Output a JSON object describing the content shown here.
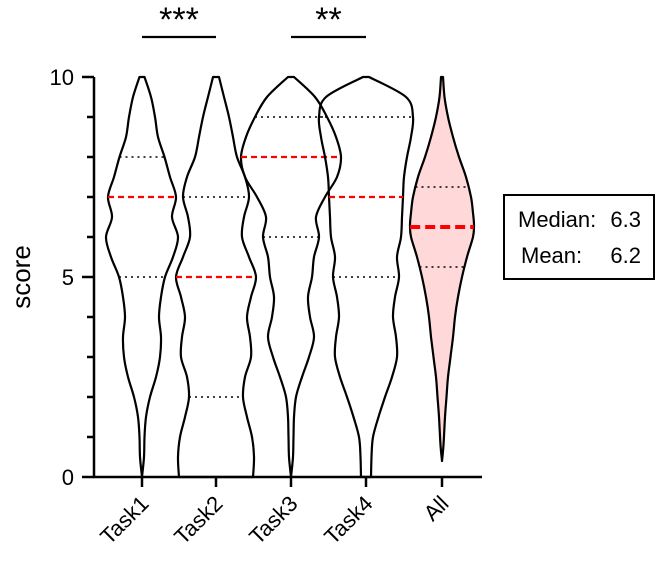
{
  "chart_data": {
    "type": "violin",
    "ylabel": "score",
    "ylim": [
      0,
      10
    ],
    "yticks": [
      0,
      5,
      10
    ],
    "categories": [
      "Task1",
      "Task2",
      "Task3",
      "Task4",
      "All"
    ],
    "violins": [
      {
        "name": "Task1",
        "fill": "none",
        "profile": [
          [
            0.0,
            0.0
          ],
          [
            0.5,
            0.04
          ],
          [
            1.0,
            0.05
          ],
          [
            1.5,
            0.08
          ],
          [
            2.0,
            0.16
          ],
          [
            2.5,
            0.28
          ],
          [
            3.0,
            0.36
          ],
          [
            3.5,
            0.38
          ],
          [
            4.0,
            0.34
          ],
          [
            4.5,
            0.38
          ],
          [
            5.0,
            0.46
          ],
          [
            5.5,
            0.62
          ],
          [
            6.0,
            0.72
          ],
          [
            6.5,
            0.6
          ],
          [
            7.0,
            0.68
          ],
          [
            7.5,
            0.56
          ],
          [
            8.0,
            0.45
          ],
          [
            8.5,
            0.32
          ],
          [
            9.0,
            0.26
          ],
          [
            9.5,
            0.18
          ],
          [
            10.0,
            0.05
          ]
        ],
        "quartiles": [
          5,
          8
        ],
        "median": 7
      },
      {
        "name": "Task2",
        "fill": "none",
        "profile": [
          [
            0.0,
            0.74
          ],
          [
            0.5,
            0.76
          ],
          [
            1.0,
            0.72
          ],
          [
            1.5,
            0.62
          ],
          [
            2.0,
            0.54
          ],
          [
            2.5,
            0.58
          ],
          [
            3.0,
            0.7
          ],
          [
            3.5,
            0.68
          ],
          [
            4.0,
            0.62
          ],
          [
            4.5,
            0.7
          ],
          [
            5.0,
            0.8
          ],
          [
            5.5,
            0.66
          ],
          [
            6.0,
            0.52
          ],
          [
            6.5,
            0.56
          ],
          [
            7.0,
            0.66
          ],
          [
            7.5,
            0.58
          ],
          [
            8.0,
            0.42
          ],
          [
            8.5,
            0.34
          ],
          [
            9.0,
            0.26
          ],
          [
            9.5,
            0.16
          ],
          [
            10.0,
            0.06
          ]
        ],
        "quartiles": [
          2,
          7
        ],
        "median": 5
      },
      {
        "name": "Task3",
        "fill": "none",
        "profile": [
          [
            0.0,
            0.0
          ],
          [
            0.5,
            0.04
          ],
          [
            1.0,
            0.05
          ],
          [
            1.5,
            0.06
          ],
          [
            2.0,
            0.1
          ],
          [
            2.5,
            0.22
          ],
          [
            3.0,
            0.36
          ],
          [
            3.5,
            0.46
          ],
          [
            4.0,
            0.38
          ],
          [
            4.5,
            0.34
          ],
          [
            5.0,
            0.42
          ],
          [
            5.5,
            0.46
          ],
          [
            6.0,
            0.56
          ],
          [
            6.5,
            0.5
          ],
          [
            7.0,
            0.68
          ],
          [
            7.5,
            0.92
          ],
          [
            8.0,
            1.0
          ],
          [
            8.5,
            0.9
          ],
          [
            9.0,
            0.72
          ],
          [
            9.5,
            0.48
          ],
          [
            10.0,
            0.06
          ]
        ],
        "quartiles": [
          6,
          9
        ],
        "median": 8
      },
      {
        "name": "Task4",
        "fill": "none",
        "profile": [
          [
            0.0,
            0.1
          ],
          [
            0.5,
            0.11
          ],
          [
            1.0,
            0.14
          ],
          [
            1.5,
            0.25
          ],
          [
            2.0,
            0.38
          ],
          [
            2.5,
            0.52
          ],
          [
            3.0,
            0.62
          ],
          [
            3.5,
            0.6
          ],
          [
            4.0,
            0.54
          ],
          [
            4.5,
            0.58
          ],
          [
            5.0,
            0.66
          ],
          [
            5.5,
            0.62
          ],
          [
            6.0,
            0.7
          ],
          [
            6.5,
            0.72
          ],
          [
            7.0,
            0.74
          ],
          [
            7.5,
            0.76
          ],
          [
            8.0,
            0.82
          ],
          [
            8.5,
            0.9
          ],
          [
            9.0,
            0.94
          ],
          [
            9.5,
            0.8
          ],
          [
            10.0,
            0.06
          ]
        ],
        "quartiles": [
          5,
          9
        ],
        "median": 7
      },
      {
        "name": "All",
        "fill": "#ffd9d9",
        "profile": [
          [
            0.4,
            0.0
          ],
          [
            0.8,
            0.03
          ],
          [
            1.5,
            0.06
          ],
          [
            2.0,
            0.09
          ],
          [
            2.5,
            0.12
          ],
          [
            3.0,
            0.17
          ],
          [
            3.5,
            0.22
          ],
          [
            4.0,
            0.26
          ],
          [
            4.5,
            0.32
          ],
          [
            5.0,
            0.4
          ],
          [
            5.5,
            0.5
          ],
          [
            6.0,
            0.62
          ],
          [
            6.3,
            0.64
          ],
          [
            6.6,
            0.62
          ],
          [
            7.0,
            0.58
          ],
          [
            7.5,
            0.48
          ],
          [
            8.0,
            0.34
          ],
          [
            8.5,
            0.22
          ],
          [
            9.0,
            0.12
          ],
          [
            9.5,
            0.05
          ],
          [
            10.0,
            0.02
          ]
        ],
        "quartiles": [
          5.25,
          7.25
        ],
        "median": 6.25,
        "median_thick": true
      }
    ],
    "significance": [
      {
        "from": "Task1",
        "to": "Task2",
        "label": "***"
      },
      {
        "from": "Task3",
        "to": "Task4",
        "label": "**"
      }
    ],
    "annotation": {
      "median_label": "Median:",
      "median_value": "6.3",
      "mean_label": "Mean:",
      "mean_value": "6.2"
    },
    "colors": {
      "median_line": "#ff0000",
      "quartile_line": "#000000",
      "outline": "#000000",
      "all_fill": "#ffd9d9"
    }
  }
}
